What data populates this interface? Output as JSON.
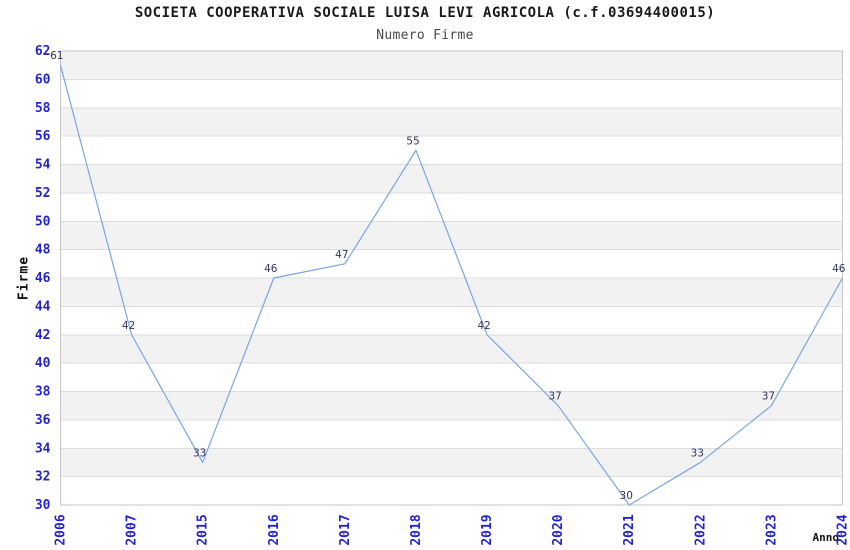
{
  "chart_data": {
    "type": "line",
    "title": "SOCIETA COOPERATIVA SOCIALE LUISA LEVI AGRICOLA (c.f.03694400015)",
    "subtitle": "Numero Firme",
    "xlabel": "Anno",
    "ylabel": "Firme",
    "categories": [
      "2006",
      "2007",
      "2015",
      "2016",
      "2017",
      "2018",
      "2019",
      "2020",
      "2021",
      "2022",
      "2023",
      "2024"
    ],
    "values": [
      61,
      42,
      33,
      46,
      47,
      55,
      42,
      37,
      30,
      33,
      37,
      46
    ],
    "ylim": [
      30,
      62
    ],
    "ytick_step": 2,
    "legend": "none",
    "grid": "horizontal-bands-alternating",
    "colors": {
      "line": "#78A6E6",
      "tick_label": "#2424CC",
      "data_label": "#333366",
      "band_fill": "#F2F2F2",
      "gridline": "#DDDDDD",
      "frame": "#C6C6C6",
      "background": "#FFFFFF"
    }
  }
}
